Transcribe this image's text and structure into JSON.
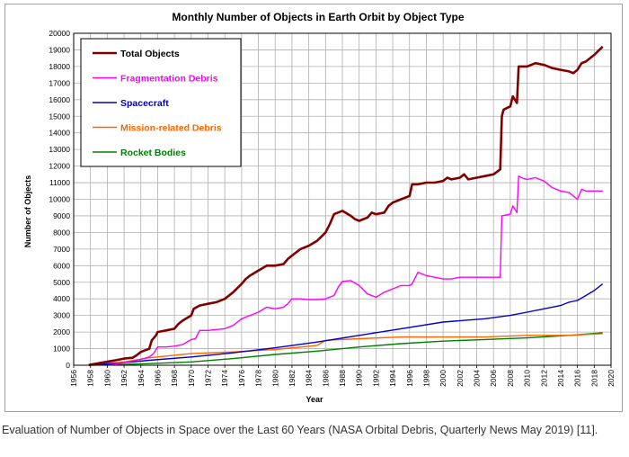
{
  "chart_data": {
    "type": "line",
    "title": "Monthly Number of Objects in Earth Orbit by Object Type",
    "xlabel": "Year",
    "ylabel": "Number of Objects",
    "xlim": [
      1956,
      2020
    ],
    "ylim": [
      0,
      20000
    ],
    "x_ticks": [
      1956,
      1958,
      1960,
      1962,
      1964,
      1966,
      1968,
      1970,
      1972,
      1974,
      1976,
      1978,
      1980,
      1982,
      1984,
      1986,
      1988,
      1990,
      1992,
      1994,
      1996,
      1998,
      2000,
      2002,
      2004,
      2006,
      2008,
      2010,
      2012,
      2014,
      2016,
      2018,
      2020
    ],
    "y_ticks": [
      0,
      1000,
      2000,
      3000,
      4000,
      5000,
      6000,
      7000,
      8000,
      9000,
      10000,
      11000,
      12000,
      13000,
      14000,
      15000,
      16000,
      17000,
      18000,
      19000,
      20000
    ],
    "grid": true,
    "legend_position": "top-left",
    "series": [
      {
        "name": "Total Objects",
        "color": "#800000",
        "x": [
          1957.8,
          1961,
          1962,
          1963,
          1963.5,
          1964,
          1964.5,
          1965,
          1965.3,
          1965.8,
          1966,
          1967,
          1968,
          1968.5,
          1969,
          1970,
          1970.3,
          1971,
          1972,
          1973,
          1974,
          1975,
          1976,
          1976.5,
          1977,
          1978,
          1979,
          1980,
          1981,
          1981.5,
          1982,
          1983,
          1984,
          1985,
          1986,
          1986.5,
          1987,
          1988,
          1989,
          1989.5,
          1990,
          1991,
          1991.5,
          1992,
          1993,
          1993.5,
          1994,
          1995,
          1996,
          1996.3,
          1997,
          1998,
          1999,
          2000,
          2000.5,
          2001,
          2002,
          2002.5,
          2003,
          2004,
          2005,
          2006,
          2006.8,
          2007,
          2007.2,
          2008,
          2008.3,
          2008.8,
          2009,
          2009.3,
          2010,
          2011,
          2012,
          2013,
          2014,
          2015,
          2015.5,
          2016,
          2016.5,
          2017,
          2018,
          2019
        ],
        "values": [
          20,
          300,
          400,
          450,
          600,
          800,
          900,
          1000,
          1500,
          1800,
          2000,
          2100,
          2200,
          2500,
          2700,
          3000,
          3400,
          3600,
          3700,
          3800,
          4000,
          4400,
          4900,
          5200,
          5400,
          5700,
          6000,
          6000,
          6100,
          6400,
          6600,
          7000,
          7200,
          7500,
          8000,
          8500,
          9100,
          9300,
          9000,
          8800,
          8700,
          8900,
          9200,
          9100,
          9200,
          9600,
          9800,
          10000,
          10200,
          10900,
          10900,
          11000,
          11000,
          11100,
          11300,
          11200,
          11300,
          11500,
          11200,
          11300,
          11400,
          11500,
          11800,
          15000,
          15400,
          15600,
          16200,
          15800,
          18000,
          18000,
          18000,
          18200,
          18100,
          17900,
          17800,
          17700,
          17600,
          17800,
          18200,
          18300,
          18700,
          19200
        ]
      },
      {
        "name": "Fragmentation Debris",
        "color": "#ff00ff",
        "x": [
          1960,
          1962,
          1963,
          1964,
          1965,
          1965.5,
          1966,
          1967,
          1968,
          1969,
          1970,
          1970.5,
          1971,
          1972,
          1973,
          1974,
          1975,
          1976,
          1977,
          1978,
          1979,
          1980,
          1981,
          1981.5,
          1982,
          1983,
          1984,
          1985,
          1986,
          1987,
          1987.5,
          1988,
          1989,
          1990,
          1991,
          1992,
          1993,
          1994,
          1995,
          1996,
          1996.3,
          1997,
          1998,
          1999,
          2000,
          2001,
          2002,
          2003,
          2004,
          2005,
          2006,
          2006.8,
          2007,
          2008,
          2008.3,
          2008.8,
          2009,
          2009.3,
          2010,
          2011,
          2012,
          2013,
          2014,
          2015,
          2016,
          2016.5,
          2017,
          2018,
          2019
        ],
        "values": [
          0,
          150,
          250,
          350,
          500,
          700,
          1100,
          1100,
          1150,
          1250,
          1550,
          1600,
          2100,
          2100,
          2150,
          2200,
          2400,
          2800,
          3000,
          3200,
          3500,
          3400,
          3500,
          3700,
          4000,
          4000,
          3950,
          3950,
          4000,
          4200,
          4700,
          5050,
          5100,
          4800,
          4300,
          4100,
          4400,
          4600,
          4800,
          4800,
          4900,
          5600,
          5400,
          5300,
          5200,
          5200,
          5300,
          5300,
          5300,
          5300,
          5300,
          5300,
          9000,
          9100,
          9600,
          9200,
          11400,
          11300,
          11200,
          11300,
          11100,
          10700,
          10500,
          10400,
          10000,
          10600,
          10500,
          10500,
          10500
        ]
      },
      {
        "name": "Spacecraft",
        "color": "#0000cc",
        "x": [
          1957.8,
          1962,
          1965,
          1970,
          1975,
          1980,
          1985,
          1990,
          1995,
          2000,
          2005,
          2008,
          2010,
          2012,
          2014,
          2015,
          2016,
          2017,
          2018,
          2019
        ],
        "values": [
          0,
          150,
          300,
          500,
          750,
          1050,
          1400,
          1800,
          2200,
          2600,
          2800,
          3000,
          3200,
          3400,
          3600,
          3800,
          3900,
          4200,
          4500,
          4900
        ]
      },
      {
        "name": "Mission-related Debris",
        "color": "#ff6600",
        "x": [
          1958,
          1962,
          1965,
          1970,
          1975,
          1980,
          1985,
          1986,
          1990,
          1995,
          2000,
          2005,
          2010,
          2015,
          2019
        ],
        "values": [
          0,
          200,
          450,
          700,
          800,
          950,
          1200,
          1500,
          1600,
          1700,
          1700,
          1700,
          1800,
          1800,
          1900
        ]
      },
      {
        "name": "Rocket Bodies",
        "color": "#008000",
        "x": [
          1957.8,
          1962,
          1965,
          1970,
          1975,
          1980,
          1985,
          1990,
          1995,
          2000,
          2005,
          2010,
          2015,
          2019
        ],
        "values": [
          0,
          50,
          100,
          200,
          400,
          650,
          850,
          1100,
          1300,
          1450,
          1550,
          1650,
          1800,
          1950
        ]
      }
    ]
  },
  "caption": "Evaluation of Number of Objects in Space over the Last 60 Years (NASA Orbital Debris, Quarterly News May 2019) [11]."
}
